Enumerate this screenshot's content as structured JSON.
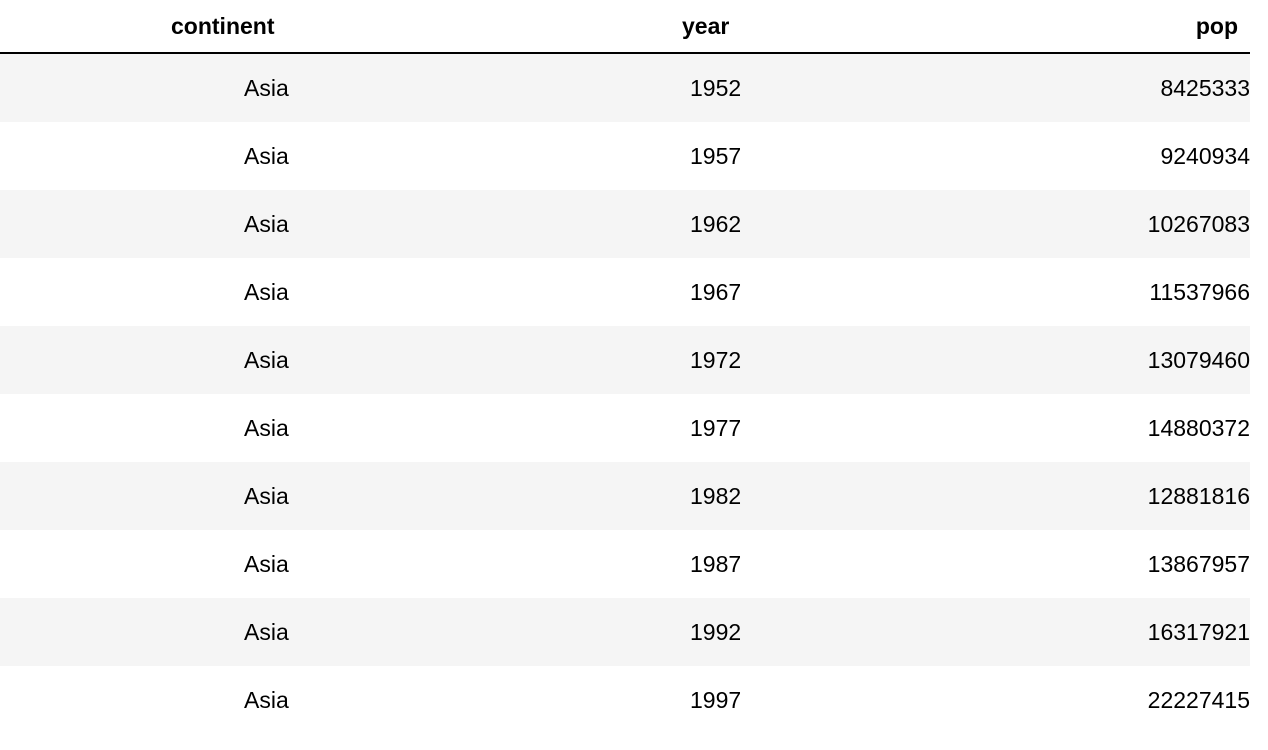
{
  "table": {
    "headers": [
      "continent",
      "year",
      "pop"
    ],
    "rows": [
      [
        "Asia",
        "1952",
        "8425333"
      ],
      [
        "Asia",
        "1957",
        "9240934"
      ],
      [
        "Asia",
        "1962",
        "10267083"
      ],
      [
        "Asia",
        "1967",
        "11537966"
      ],
      [
        "Asia",
        "1972",
        "13079460"
      ],
      [
        "Asia",
        "1977",
        "14880372"
      ],
      [
        "Asia",
        "1982",
        "12881816"
      ],
      [
        "Asia",
        "1987",
        "13867957"
      ],
      [
        "Asia",
        "1992",
        "16317921"
      ],
      [
        "Asia",
        "1997",
        "22227415"
      ]
    ]
  }
}
